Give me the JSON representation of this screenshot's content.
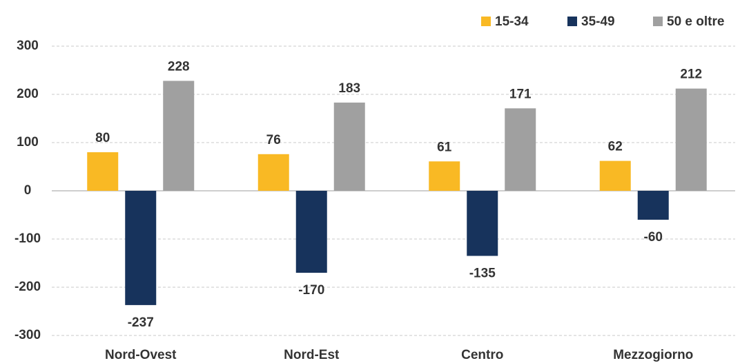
{
  "chart_data": {
    "type": "bar",
    "categories": [
      "Nord-Ovest",
      "Nord-Est",
      "Centro",
      "Mezzogiorno"
    ],
    "series": [
      {
        "name": "15-34",
        "color": "#f9b924",
        "values": [
          80,
          76,
          61,
          62
        ]
      },
      {
        "name": "35-49",
        "color": "#17335c",
        "values": [
          -237,
          -170,
          -135,
          -60
        ]
      },
      {
        "name": "50 e oltre",
        "color": "#a0a0a0",
        "values": [
          228,
          183,
          171,
          212
        ]
      }
    ],
    "ylim": [
      -300,
      300
    ],
    "yticks": [
      -300,
      -200,
      -100,
      0,
      100,
      200,
      300
    ],
    "grid": true,
    "legend": "top-right"
  }
}
